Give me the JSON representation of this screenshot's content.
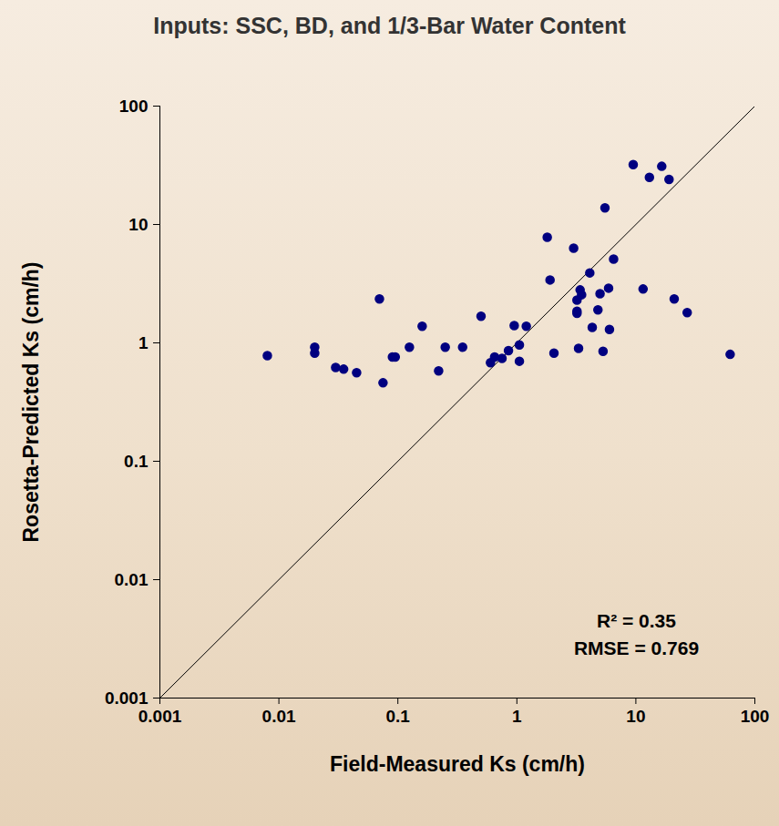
{
  "chart_data": {
    "type": "scatter",
    "title": "Inputs: SSC, BD, and 1/3-Bar Water Content",
    "x_label": "Field-Measured Ks (cm/h)",
    "y_label": "Rosetta-Predicted Ks (cm/h)",
    "annotations": [
      "R² = 0.35",
      "RMSE = 0.769"
    ],
    "log": true,
    "grid": false,
    "color": "#000080",
    "marker": "circle",
    "xlim": [
      0.001,
      100
    ],
    "ylim": [
      0.001,
      100
    ],
    "xticks": [
      0.001,
      0.01,
      0.1,
      1,
      10,
      100
    ],
    "yticks": [
      0.001,
      0.01,
      0.1,
      1,
      10,
      100
    ],
    "x": [
      0.008,
      0.02,
      0.02,
      0.03,
      0.035,
      0.045,
      0.07,
      0.075,
      0.09,
      0.095,
      0.125,
      0.16,
      0.22,
      0.25,
      0.35,
      0.5,
      0.6,
      0.65,
      0.75,
      0.85,
      0.95,
      1.05,
      1.05,
      1.2,
      1.8,
      1.9,
      2.05,
      3.0,
      3.2,
      3.2,
      3.2,
      3.3,
      3.4,
      3.5,
      4.1,
      4.3,
      4.8,
      5.0,
      5.3,
      5.5,
      5.9,
      6.0,
      6.5,
      9.5,
      11.5,
      13,
      16.5,
      19,
      21,
      27,
      62
    ],
    "values": [
      0.78,
      0.92,
      0.82,
      0.62,
      0.6,
      0.56,
      2.35,
      0.46,
      0.76,
      0.76,
      0.92,
      1.38,
      0.58,
      0.92,
      0.92,
      1.68,
      0.68,
      0.76,
      0.74,
      0.86,
      1.4,
      0.7,
      0.96,
      1.38,
      7.8,
      3.4,
      0.82,
      6.3,
      2.3,
      1.85,
      1.78,
      0.9,
      2.8,
      2.55,
      3.9,
      1.35,
      1.9,
      2.6,
      0.85,
      13.8,
      2.9,
      1.3,
      5.1,
      32,
      2.85,
      25,
      31,
      24,
      2.35,
      1.8,
      0.8
    ]
  }
}
